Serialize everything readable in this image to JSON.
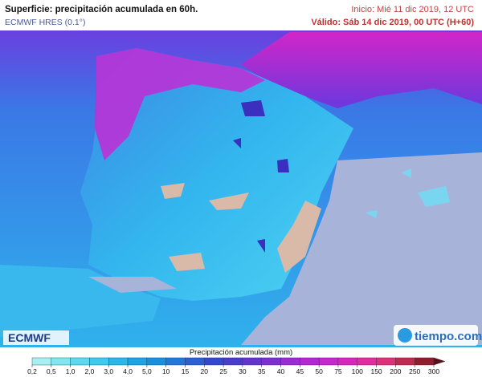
{
  "header": {
    "title": "Superficie: precipitación acumulada en 60h.",
    "model": "ECMWF HRES (0.1°)",
    "init": "Inicio: Mié 11 dic 2019, 12 UTC",
    "valid": "Válido: Sáb 14 dic 2019, 00 UTC (H+60)"
  },
  "logos": {
    "left": "ECMWF",
    "right": "tiempo.com"
  },
  "legend": {
    "title": "Precipitación acumulada (mm)",
    "ticks": [
      {
        "value": 0.2,
        "label": "0,2"
      },
      {
        "value": 0.5,
        "label": "0,5"
      },
      {
        "value": 1,
        "label": "1,0"
      },
      {
        "value": 2,
        "label": "2,0"
      },
      {
        "value": 3,
        "label": "3,0"
      },
      {
        "value": 4,
        "label": "4,0"
      },
      {
        "value": 5,
        "label": "5,0"
      },
      10,
      15,
      20,
      25,
      30,
      35,
      40,
      45,
      50,
      75,
      100,
      150,
      200,
      250,
      300
    ],
    "colors": [
      "#a6f0f5",
      "#80e6f2",
      "#5bd9f0",
      "#3ccbee",
      "#28b9ea",
      "#1aa5e6",
      "#1890e0",
      "#2277dd",
      "#2a5fd8",
      "#3348d2",
      "#4a3bd0",
      "#6434d0",
      "#7d2fd3",
      "#9a2bd6",
      "#b327d6",
      "#c826cf",
      "#d926bd",
      "#e62aa0",
      "#e0307a",
      "#c02a50",
      "#901c2c",
      "#5a0f1a"
    ]
  }
}
